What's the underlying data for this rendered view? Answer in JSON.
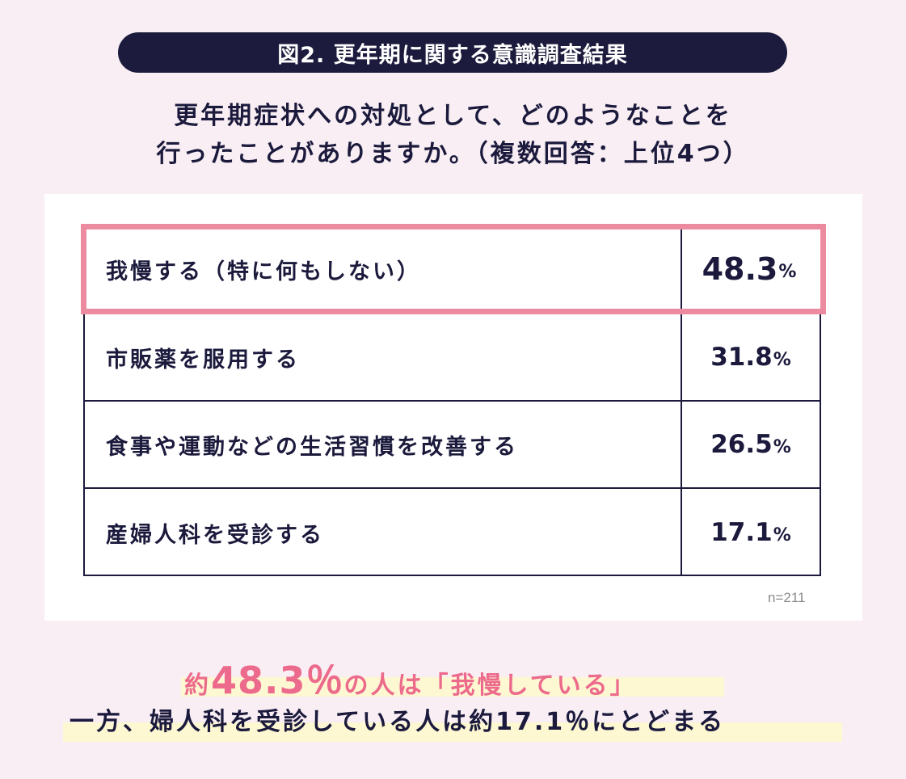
{
  "header": {
    "figure_title": "図2. 更年期に関する意識調査結果"
  },
  "question": {
    "line1": "更年期症状への対処として、どのようなことを",
    "line2": "行ったことがありますか。（複数回答：上位4つ）"
  },
  "chart_data": {
    "type": "table",
    "rows": [
      {
        "label": "我慢する（特に何もしない）",
        "value": 48.3,
        "value_text": "48.3",
        "unit": "%",
        "highlighted": true
      },
      {
        "label": "市販薬を服用する",
        "value": 31.8,
        "value_text": "31.8",
        "unit": "%",
        "highlighted": false
      },
      {
        "label": "食事や運動などの生活習慣を改善する",
        "value": 26.5,
        "value_text": "26.5",
        "unit": "%",
        "highlighted": false
      },
      {
        "label": "産婦人科を受診する",
        "value": 17.1,
        "value_text": "17.1",
        "unit": "%",
        "highlighted": false
      }
    ],
    "sample_size": "n=211"
  },
  "conclusion": {
    "line1_prefix": "約",
    "line1_value": "48.3％",
    "line1_suffix": "の人は「我慢している」",
    "line2": "一方、婦人科を受診している人は約17.1％にとどまる"
  },
  "colors": {
    "background": "#f8eef3",
    "navy": "#1c1b3d",
    "pink_highlight": "#ec8aa0",
    "pink_text": "#ec6a8c",
    "yellow_marker": "#fdf7d2"
  }
}
